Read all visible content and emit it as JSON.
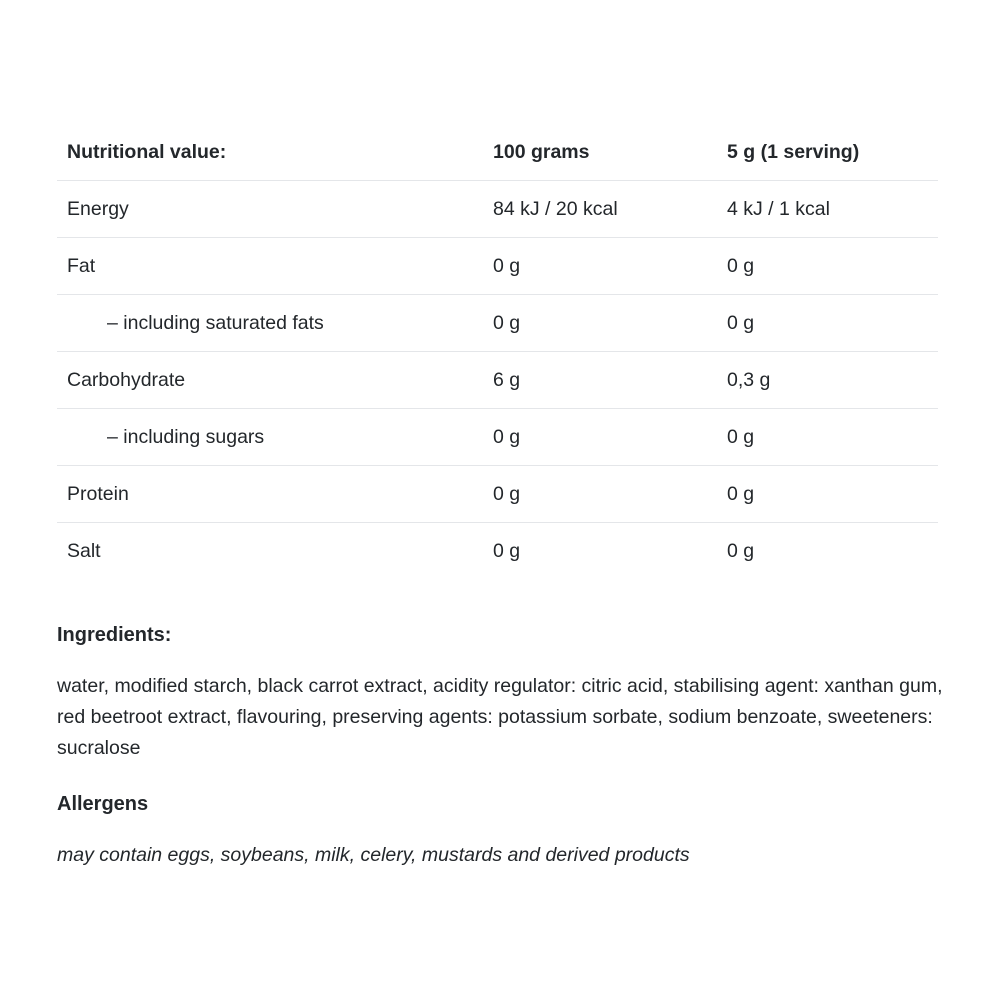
{
  "colors": {
    "background": "#ffffff",
    "text": "#23272b",
    "divider": "#e4e6e9"
  },
  "table": {
    "header": {
      "label": "Nutritional value:",
      "per100": "100 grams",
      "perServing": "5 g (1 serving)"
    },
    "rows": [
      {
        "label": "Energy",
        "indent": false,
        "per100": "84 kJ / 20 kcal",
        "perServing": "4 kJ / 1 kcal"
      },
      {
        "label": "Fat",
        "indent": false,
        "per100": "0 g",
        "perServing": "0 g"
      },
      {
        "label": "– including saturated fats",
        "indent": true,
        "per100": "0 g",
        "perServing": "0 g"
      },
      {
        "label": "Carbohydrate",
        "indent": false,
        "per100": "6 g",
        "perServing": "0,3 g"
      },
      {
        "label": "– including sugars",
        "indent": true,
        "per100": "0 g",
        "perServing": "0 g"
      },
      {
        "label": "Protein",
        "indent": false,
        "per100": "0 g",
        "perServing": "0 g"
      },
      {
        "label": "Salt",
        "indent": false,
        "per100": "0 g",
        "perServing": "0 g"
      }
    ]
  },
  "ingredients": {
    "heading": "Ingredients:",
    "text": "water, modified starch, black carrot extract, acidity regulator: citric acid, stabilising agent: xanthan gum, red beetroot extract, flavouring, preserving agents: potassium sorbate, sodium benzoate, sweeteners: sucralose"
  },
  "allergens": {
    "heading": "Allergens",
    "text": "may contain eggs, soybeans, milk, celery, mustards and derived products"
  }
}
